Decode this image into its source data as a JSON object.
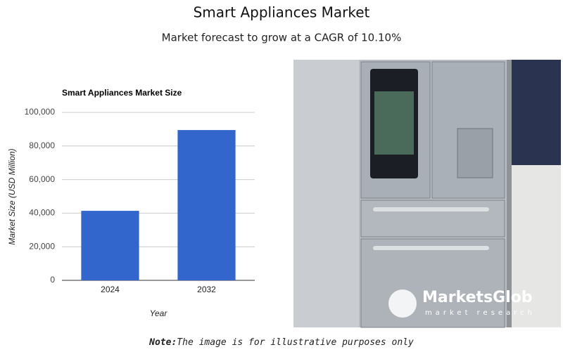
{
  "header": {
    "title": "Smart Appliances Market",
    "subtitle": "Market forecast to grow at a CAGR of 10.10%"
  },
  "chart_data": {
    "type": "bar",
    "title": "Smart Appliances Market Size",
    "categories": [
      "2024",
      "2032"
    ],
    "values": [
      41400,
      89500
    ],
    "color": "#3366cc",
    "x_label": "Year",
    "y_label": "Market Size (USD Million)",
    "ylim": [
      0,
      100000
    ],
    "yticks": [
      0,
      {
        "value": 20000,
        "label": "20,000"
      },
      {
        "value": 40000,
        "label": "40,000"
      },
      {
        "value": 60000,
        "label": "60,000"
      },
      {
        "value": 80000,
        "label": "80,000"
      },
      {
        "value": 100000,
        "label": "100,000"
      }
    ],
    "grid": true
  },
  "image": {
    "logo": "MarketsGlob",
    "tagline": "market research"
  },
  "note": {
    "label": "Note:",
    "text": "The image is for illustrative purposes only"
  }
}
